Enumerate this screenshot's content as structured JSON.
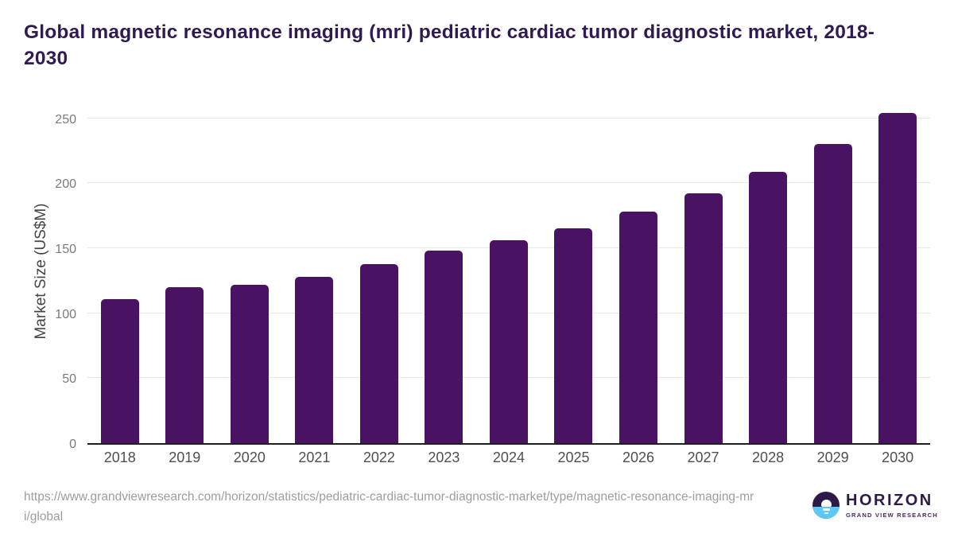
{
  "header": {
    "title": "Global magnetic resonance imaging (mri) pediatric cardiac tumor diagnostic market, 2018-2030"
  },
  "chart_data": {
    "type": "bar",
    "title": "Global magnetic resonance imaging (mri) pediatric cardiac tumor diagnostic market, 2018-2030",
    "categories": [
      "2018",
      "2019",
      "2020",
      "2021",
      "2022",
      "2023",
      "2024",
      "2025",
      "2026",
      "2027",
      "2028",
      "2029",
      "2030"
    ],
    "values": [
      111,
      120,
      122,
      128,
      138,
      148,
      156,
      165,
      178,
      192,
      209,
      230,
      254
    ],
    "xlabel": "",
    "ylabel": "Market Size (US$M)",
    "ylim": [
      0,
      250
    ],
    "yticks": [
      0,
      50,
      100,
      150,
      200,
      250
    ],
    "grid": true,
    "legend_position": "none",
    "bar_color": "#4a1263"
  },
  "colors": {
    "title_text": "#2f1a52",
    "bar_fill": "#4a1263",
    "gridline": "#e8e8e8",
    "axis_line": "#1f1f1f",
    "tick_text": "#7a7a7a",
    "x_tick_text": "#4f4f4f",
    "url_text": "#9d9d9d",
    "logo_dark": "#2e1a47",
    "logo_blue": "#5bc8f5"
  },
  "footer": {
    "source_url": "https://www.grandviewresearch.com/horizon/statistics/pediatric-cardiac-tumor-diagnostic-market/type/magnetic-resonance-imaging-mri/global"
  },
  "logo": {
    "brand": "HORIZON",
    "tagline": "GRAND VIEW RESEARCH"
  }
}
